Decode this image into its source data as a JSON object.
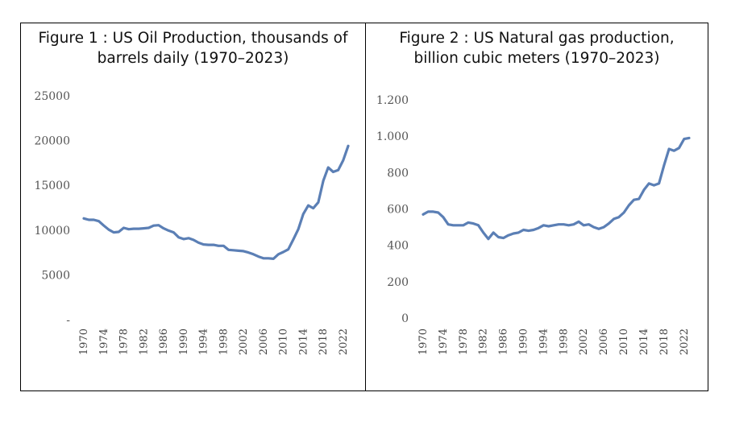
{
  "chart_data": [
    {
      "type": "line",
      "title_line1": "Figure 1 : US Oil Production, thousands of",
      "title_line2": "barrels daily (1970–2023)",
      "xlabel": "",
      "ylabel": "",
      "ylim": [
        0,
        25000
      ],
      "ytick_labels": [
        "25000",
        "20000",
        "15000",
        "10000",
        "5000",
        "-"
      ],
      "ytick_values": [
        25000,
        20000,
        15000,
        10000,
        5000,
        0
      ],
      "xtick_labels": [
        "1970",
        "1974",
        "1978",
        "1982",
        "1986",
        "1990",
        "1994",
        "1998",
        "2002",
        "2006",
        "2010",
        "2014",
        "2018",
        "2022"
      ],
      "line_color": "#5b7fb5",
      "series": [
        {
          "name": "US Oil Production",
          "x": [
            1970,
            1971,
            1972,
            1973,
            1974,
            1975,
            1976,
            1977,
            1978,
            1979,
            1980,
            1981,
            1982,
            1983,
            1984,
            1985,
            1986,
            1987,
            1988,
            1989,
            1990,
            1991,
            1992,
            1993,
            1994,
            1995,
            1996,
            1997,
            1998,
            1999,
            2000,
            2001,
            2002,
            2003,
            2004,
            2005,
            2006,
            2007,
            2008,
            2009,
            2010,
            2011,
            2012,
            2013,
            2014,
            2015,
            2016,
            2017,
            2018,
            2019,
            2020,
            2021,
            2022,
            2023
          ],
          "values": [
            11300,
            11150,
            11150,
            11000,
            10500,
            10050,
            9750,
            9800,
            10250,
            10100,
            10150,
            10150,
            10200,
            10250,
            10500,
            10550,
            10200,
            9950,
            9750,
            9200,
            9000,
            9100,
            8900,
            8600,
            8400,
            8350,
            8350,
            8250,
            8250,
            7800,
            7750,
            7700,
            7650,
            7500,
            7300,
            7050,
            6850,
            6850,
            6800,
            7300,
            7550,
            7850,
            8950,
            10100,
            11800,
            12750,
            12450,
            13100,
            15500,
            17000,
            16500,
            16700,
            17800,
            19400
          ]
        }
      ]
    },
    {
      "type": "line",
      "title_line1": "Figure 2 : US Natural gas production,",
      "title_line2": "billion cubic meters (1970–2023)",
      "xlabel": "",
      "ylabel": "",
      "ylim": [
        0,
        1200
      ],
      "ytick_labels": [
        "1.200",
        "1.000",
        "800",
        "600",
        "400",
        "200",
        "0"
      ],
      "ytick_values": [
        1200,
        1000,
        800,
        600,
        400,
        200,
        0
      ],
      "xtick_labels": [
        "1970",
        "1974",
        "1978",
        "1982",
        "1986",
        "1990",
        "1994",
        "1998",
        "2002",
        "2006",
        "2010",
        "2014",
        "2018",
        "2022"
      ],
      "line_color": "#5b7fb5",
      "series": [
        {
          "name": "US Natural Gas Production",
          "x": [
            1970,
            1971,
            1972,
            1973,
            1974,
            1975,
            1976,
            1977,
            1978,
            1979,
            1980,
            1981,
            1982,
            1983,
            1984,
            1985,
            1986,
            1987,
            1988,
            1989,
            1990,
            1991,
            1992,
            1993,
            1994,
            1995,
            1996,
            1997,
            1998,
            1999,
            2000,
            2001,
            2002,
            2003,
            2004,
            2005,
            2006,
            2007,
            2008,
            2009,
            2010,
            2011,
            2012,
            2013,
            2014,
            2015,
            2016,
            2017,
            2018,
            2019,
            2020,
            2021,
            2022,
            2023
          ],
          "values": [
            570,
            585,
            585,
            580,
            555,
            515,
            510,
            510,
            510,
            525,
            520,
            510,
            470,
            435,
            470,
            445,
            440,
            455,
            465,
            470,
            485,
            480,
            485,
            495,
            510,
            505,
            510,
            515,
            515,
            510,
            515,
            530,
            510,
            515,
            500,
            490,
            500,
            520,
            545,
            555,
            580,
            620,
            650,
            655,
            705,
            740,
            730,
            740,
            840,
            930,
            920,
            935,
            985,
            990
          ]
        }
      ]
    }
  ]
}
